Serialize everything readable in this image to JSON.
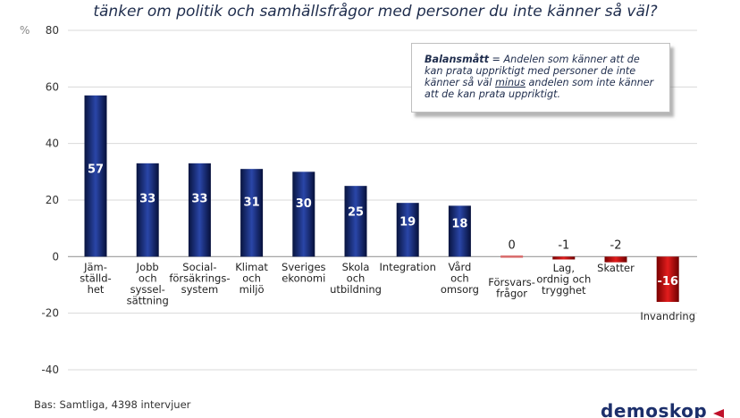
{
  "title_line": "tänker om politik och samhällsfrågor med personer du inte känner så väl?",
  "note": {
    "term": "Balansmått",
    "text_before": " = Andelen som känner att de kan prata uppriktigt med personer de inte känner så väl ",
    "underlined": "minus",
    "text_after": " andelen som inte känner att de kan prata uppriktigt."
  },
  "footer": "Bas: Samtliga, 4398 intervjuer",
  "logo": "demoskop",
  "colors": {
    "positive": "#0d2266",
    "negative": "#c00000",
    "zero": "#d86a6a"
  },
  "chart_data": {
    "type": "bar",
    "unit": "%",
    "ylim": [
      -40,
      80
    ],
    "yticks": [
      -40,
      -20,
      0,
      20,
      40,
      60,
      80
    ],
    "grid": true,
    "categories": [
      "Jäm-|ställd-|het",
      "Jobb|och|syssel-|sättning",
      "Social-|försäkrings-|system",
      "Klimat|och|miljö",
      "Sveriges|ekonomi",
      "Skola|och|utbildning",
      "Integration",
      "Vård|och|omsorg",
      "Försvars-|frågor",
      "Lag,|ordnig och|trygghet",
      "Skatter",
      "Invandring"
    ],
    "values": [
      57,
      33,
      33,
      31,
      30,
      25,
      19,
      18,
      0,
      -1,
      -2,
      -16
    ],
    "value_labels": [
      "57",
      "33",
      "33",
      "31",
      "30",
      "25",
      "19",
      "18",
      "0",
      "-1",
      "-2",
      "-16"
    ]
  }
}
